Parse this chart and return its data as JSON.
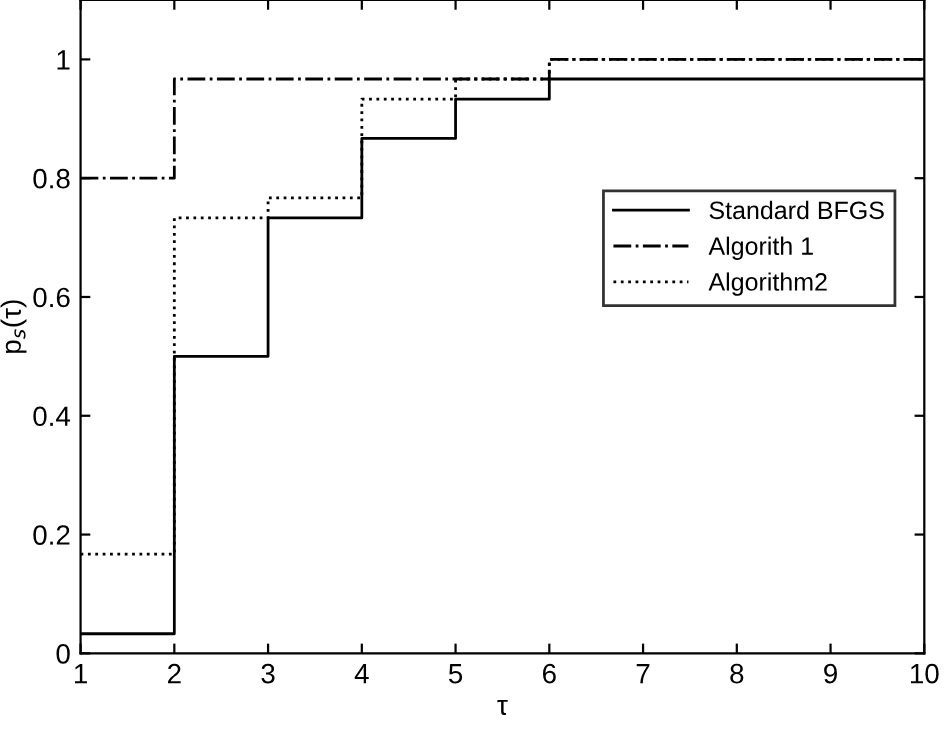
{
  "chart_data": {
    "type": "step",
    "xlabel": "τ",
    "ylabel": "p$_{s}$(τ)",
    "x": [
      1,
      2,
      3,
      4,
      5,
      6,
      7,
      8,
      9,
      10
    ],
    "series": [
      {
        "name": "Standard BFGS",
        "color": "#000000",
        "line_style": "solid",
        "values": [
          0.033,
          0.5,
          0.733,
          0.867,
          0.933,
          0.967,
          0.967,
          0.967,
          0.967,
          0.967
        ]
      },
      {
        "name": "Algorith 1",
        "color": "#000000",
        "line_style": "dashdot",
        "values": [
          0.8,
          0.967,
          0.967,
          0.967,
          0.967,
          1.0,
          1.0,
          1.0,
          1.0,
          1.0
        ]
      },
      {
        "name": "Algorithm2",
        "color": "#000000",
        "line_style": "dotted",
        "values": [
          0.167,
          0.733,
          0.767,
          0.933,
          0.967,
          1.0,
          1.0,
          1.0,
          1.0,
          1.0
        ]
      }
    ],
    "xlim": [
      1,
      10
    ],
    "ylim": [
      0,
      1.1
    ],
    "xticks": [
      1,
      2,
      3,
      4,
      5,
      6,
      7,
      8,
      9,
      10
    ],
    "yticks": [
      0,
      0.2,
      0.4,
      0.6,
      0.8,
      1
    ],
    "grid": false,
    "legend": "right"
  }
}
